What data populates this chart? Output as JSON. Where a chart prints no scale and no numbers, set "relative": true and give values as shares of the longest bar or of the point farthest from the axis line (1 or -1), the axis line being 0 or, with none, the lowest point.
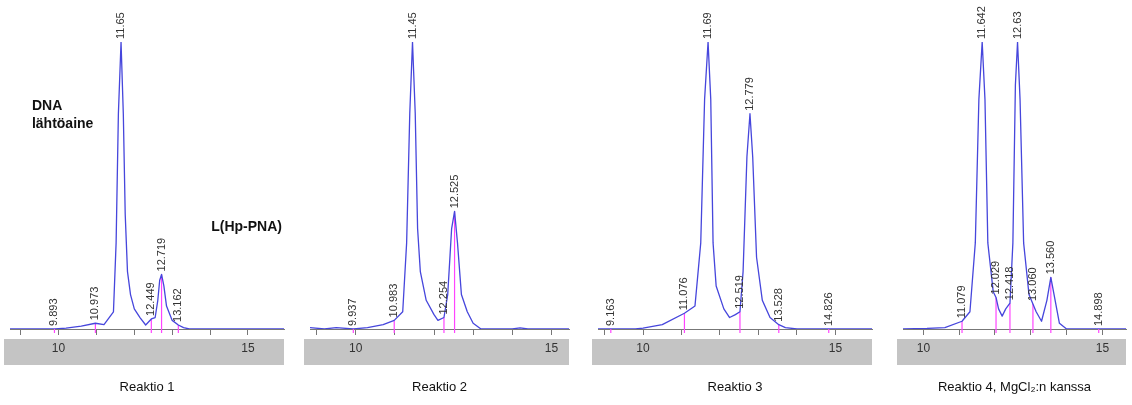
{
  "chart_data": [
    {
      "type": "line",
      "title": "Reaktio 1",
      "relative": true,
      "marker": "none",
      "xlim": [
        8.72,
        15.95
      ],
      "xticks": [
        {
          "value": 9,
          "label": null
        },
        {
          "value": 10,
          "label": "10"
        },
        {
          "value": 11,
          "label": null
        },
        {
          "value": 12,
          "label": null
        },
        {
          "value": 13,
          "label": null
        },
        {
          "value": 14,
          "label": null
        },
        {
          "value": 15,
          "label": "15"
        }
      ],
      "annotations": [
        "DNA lähtöaine",
        "L(Hp-PNA)",
        {
          "text": "9.893",
          "x": 9.893,
          "y": 0
        },
        {
          "text": "10.973",
          "x": 10.973,
          "y": 0.02
        },
        {
          "text": "11.65",
          "x": 11.65,
          "y": 1
        },
        {
          "text": "12.449",
          "x": 12.449,
          "y": 0.035
        },
        {
          "text": "12.719",
          "x": 12.719,
          "y": 0.19
        },
        {
          "text": "13.162",
          "x": 13.162,
          "y": 0.014
        }
      ],
      "series": [
        {
          "color": "#4646dc",
          "x": [
            8.72,
            9.5,
            9.893,
            10.2,
            10.6,
            10.973,
            11.2,
            11.45,
            11.52,
            11.58,
            11.65,
            11.71,
            11.76,
            11.82,
            11.9,
            12.0,
            12.15,
            12.3,
            12.449,
            12.55,
            12.62,
            12.67,
            12.719,
            12.78,
            12.85,
            13.0,
            13.162,
            13.3,
            13.45,
            15.95
          ],
          "values": [
            0,
            0,
            0,
            0.003,
            0.01,
            0.02,
            0.015,
            0.06,
            0.3,
            0.75,
            1,
            0.75,
            0.4,
            0.2,
            0.12,
            0.07,
            0.04,
            0.014,
            0.035,
            0.04,
            0.1,
            0.17,
            0.19,
            0.15,
            0.08,
            0.03,
            0.014,
            0.005,
            0,
            0
          ]
        }
      ]
    },
    {
      "type": "line",
      "title": "Reaktio 2",
      "relative": true,
      "marker": "none",
      "xlim": [
        8.83,
        15.45
      ],
      "xticks": [
        {
          "value": 9,
          "label": null
        },
        {
          "value": 10,
          "label": "10"
        },
        {
          "value": 11,
          "label": null
        },
        {
          "value": 12,
          "label": null
        },
        {
          "value": 13,
          "label": null
        },
        {
          "value": 14,
          "label": null
        },
        {
          "value": 15,
          "label": "15"
        }
      ],
      "annotations": [
        {
          "text": "9.937",
          "x": 9.937,
          "y": 0
        },
        {
          "text": "10.983",
          "x": 10.983,
          "y": 0.03
        },
        {
          "text": "11.45",
          "x": 11.45,
          "y": 1
        },
        {
          "text": "12.254",
          "x": 12.254,
          "y": 0.04
        },
        {
          "text": "12.525",
          "x": 12.525,
          "y": 0.41
        }
      ],
      "series": [
        {
          "color": "#4646dc",
          "x": [
            8.83,
            9.2,
            9.5,
            9.937,
            10.3,
            10.7,
            10.983,
            11.2,
            11.3,
            11.38,
            11.45,
            11.52,
            11.58,
            11.65,
            11.8,
            12.0,
            12.1,
            12.254,
            12.35,
            12.45,
            12.525,
            12.6,
            12.7,
            12.85,
            13.0,
            13.2,
            14.0,
            14.2,
            14.4,
            15.45
          ],
          "values": [
            0.005,
            0,
            0.005,
            0,
            0.005,
            0.015,
            0.03,
            0.06,
            0.3,
            0.75,
            1,
            0.75,
            0.35,
            0.2,
            0.1,
            0.05,
            0.03,
            0.04,
            0.12,
            0.35,
            0.41,
            0.3,
            0.12,
            0.06,
            0.02,
            0,
            0,
            0.004,
            0,
            0
          ]
        }
      ]
    },
    {
      "type": "line",
      "title": "Reaktio 3",
      "relative": true,
      "marker": "none",
      "xlim": [
        8.83,
        15.95
      ],
      "xticks": [
        {
          "value": 9,
          "label": null
        },
        {
          "value": 10,
          "label": "10"
        },
        {
          "value": 11,
          "label": null
        },
        {
          "value": 12,
          "label": null
        },
        {
          "value": 13,
          "label": null
        },
        {
          "value": 14,
          "label": null
        },
        {
          "value": 15,
          "label": "15"
        }
      ],
      "annotations": [
        {
          "text": "9.163",
          "x": 9.163,
          "y": 0
        },
        {
          "text": "11.076",
          "x": 11.076,
          "y": 0.055
        },
        {
          "text": "11.69",
          "x": 11.69,
          "y": 1
        },
        {
          "text": "12.519",
          "x": 12.519,
          "y": 0.06
        },
        {
          "text": "12.779",
          "x": 12.779,
          "y": 0.75
        },
        {
          "text": "13.528",
          "x": 13.528,
          "y": 0.015
        },
        {
          "text": "14.826",
          "x": 14.826,
          "y": 0
        }
      ],
      "series": [
        {
          "color": "#4646dc",
          "x": [
            8.83,
            9.163,
            9.8,
            10.0,
            10.5,
            11.076,
            11.35,
            11.5,
            11.6,
            11.69,
            11.76,
            11.82,
            11.9,
            12.1,
            12.25,
            12.4,
            12.519,
            12.6,
            12.7,
            12.779,
            12.85,
            12.95,
            13.1,
            13.3,
            13.528,
            13.7,
            14.0,
            14.826,
            15.95
          ],
          "values": [
            0,
            0,
            0,
            0.003,
            0.015,
            0.055,
            0.08,
            0.3,
            0.8,
            1,
            0.8,
            0.3,
            0.15,
            0.07,
            0.04,
            0.05,
            0.06,
            0.2,
            0.6,
            0.75,
            0.6,
            0.25,
            0.1,
            0.04,
            0.015,
            0.005,
            0,
            0,
            0
          ]
        }
      ]
    },
    {
      "type": "line",
      "title": "Reaktio 4, MgCl₂:n kanssa",
      "relative": true,
      "marker": "none",
      "xlim": [
        9.43,
        15.66
      ],
      "xticks": [
        {
          "value": 10,
          "label": "10"
        },
        {
          "value": 11,
          "label": null
        },
        {
          "value": 12,
          "label": null
        },
        {
          "value": 13,
          "label": null
        },
        {
          "value": 14,
          "label": null
        },
        {
          "value": 15,
          "label": "15"
        }
      ],
      "annotations": [
        {
          "text": "11.079",
          "x": 11.079,
          "y": 0.027
        },
        {
          "text": "11.642",
          "x": 11.642,
          "y": 1
        },
        {
          "text": "12.029",
          "x": 12.029,
          "y": 0.11
        },
        {
          "text": "12.418",
          "x": 12.418,
          "y": 0.09
        },
        {
          "text": "12.63",
          "x": 12.63,
          "y": 1
        },
        {
          "text": "13.060",
          "x": 13.06,
          "y": 0.087
        },
        {
          "text": "13.560",
          "x": 13.56,
          "y": 0.18
        },
        {
          "text": "14.898",
          "x": 14.898,
          "y": 0
        }
      ],
      "series": [
        {
          "color": "#4646dc",
          "x": [
            9.43,
            10.1,
            10.6,
            11.079,
            11.3,
            11.45,
            11.55,
            11.642,
            11.72,
            11.8,
            11.95,
            12.029,
            12.1,
            12.2,
            12.3,
            12.418,
            12.5,
            12.57,
            12.63,
            12.7,
            12.8,
            12.95,
            13.06,
            13.15,
            13.3,
            13.45,
            13.56,
            13.65,
            13.8,
            14.0,
            14.898,
            15.66
          ],
          "values": [
            0,
            0.002,
            0.005,
            0.027,
            0.06,
            0.3,
            0.8,
            1,
            0.8,
            0.3,
            0.13,
            0.11,
            0.07,
            0.045,
            0.07,
            0.09,
            0.3,
            0.85,
            1,
            0.8,
            0.3,
            0.12,
            0.087,
            0.06,
            0.027,
            0.1,
            0.18,
            0.12,
            0.02,
            0,
            0,
            0
          ]
        }
      ]
    }
  ]
}
